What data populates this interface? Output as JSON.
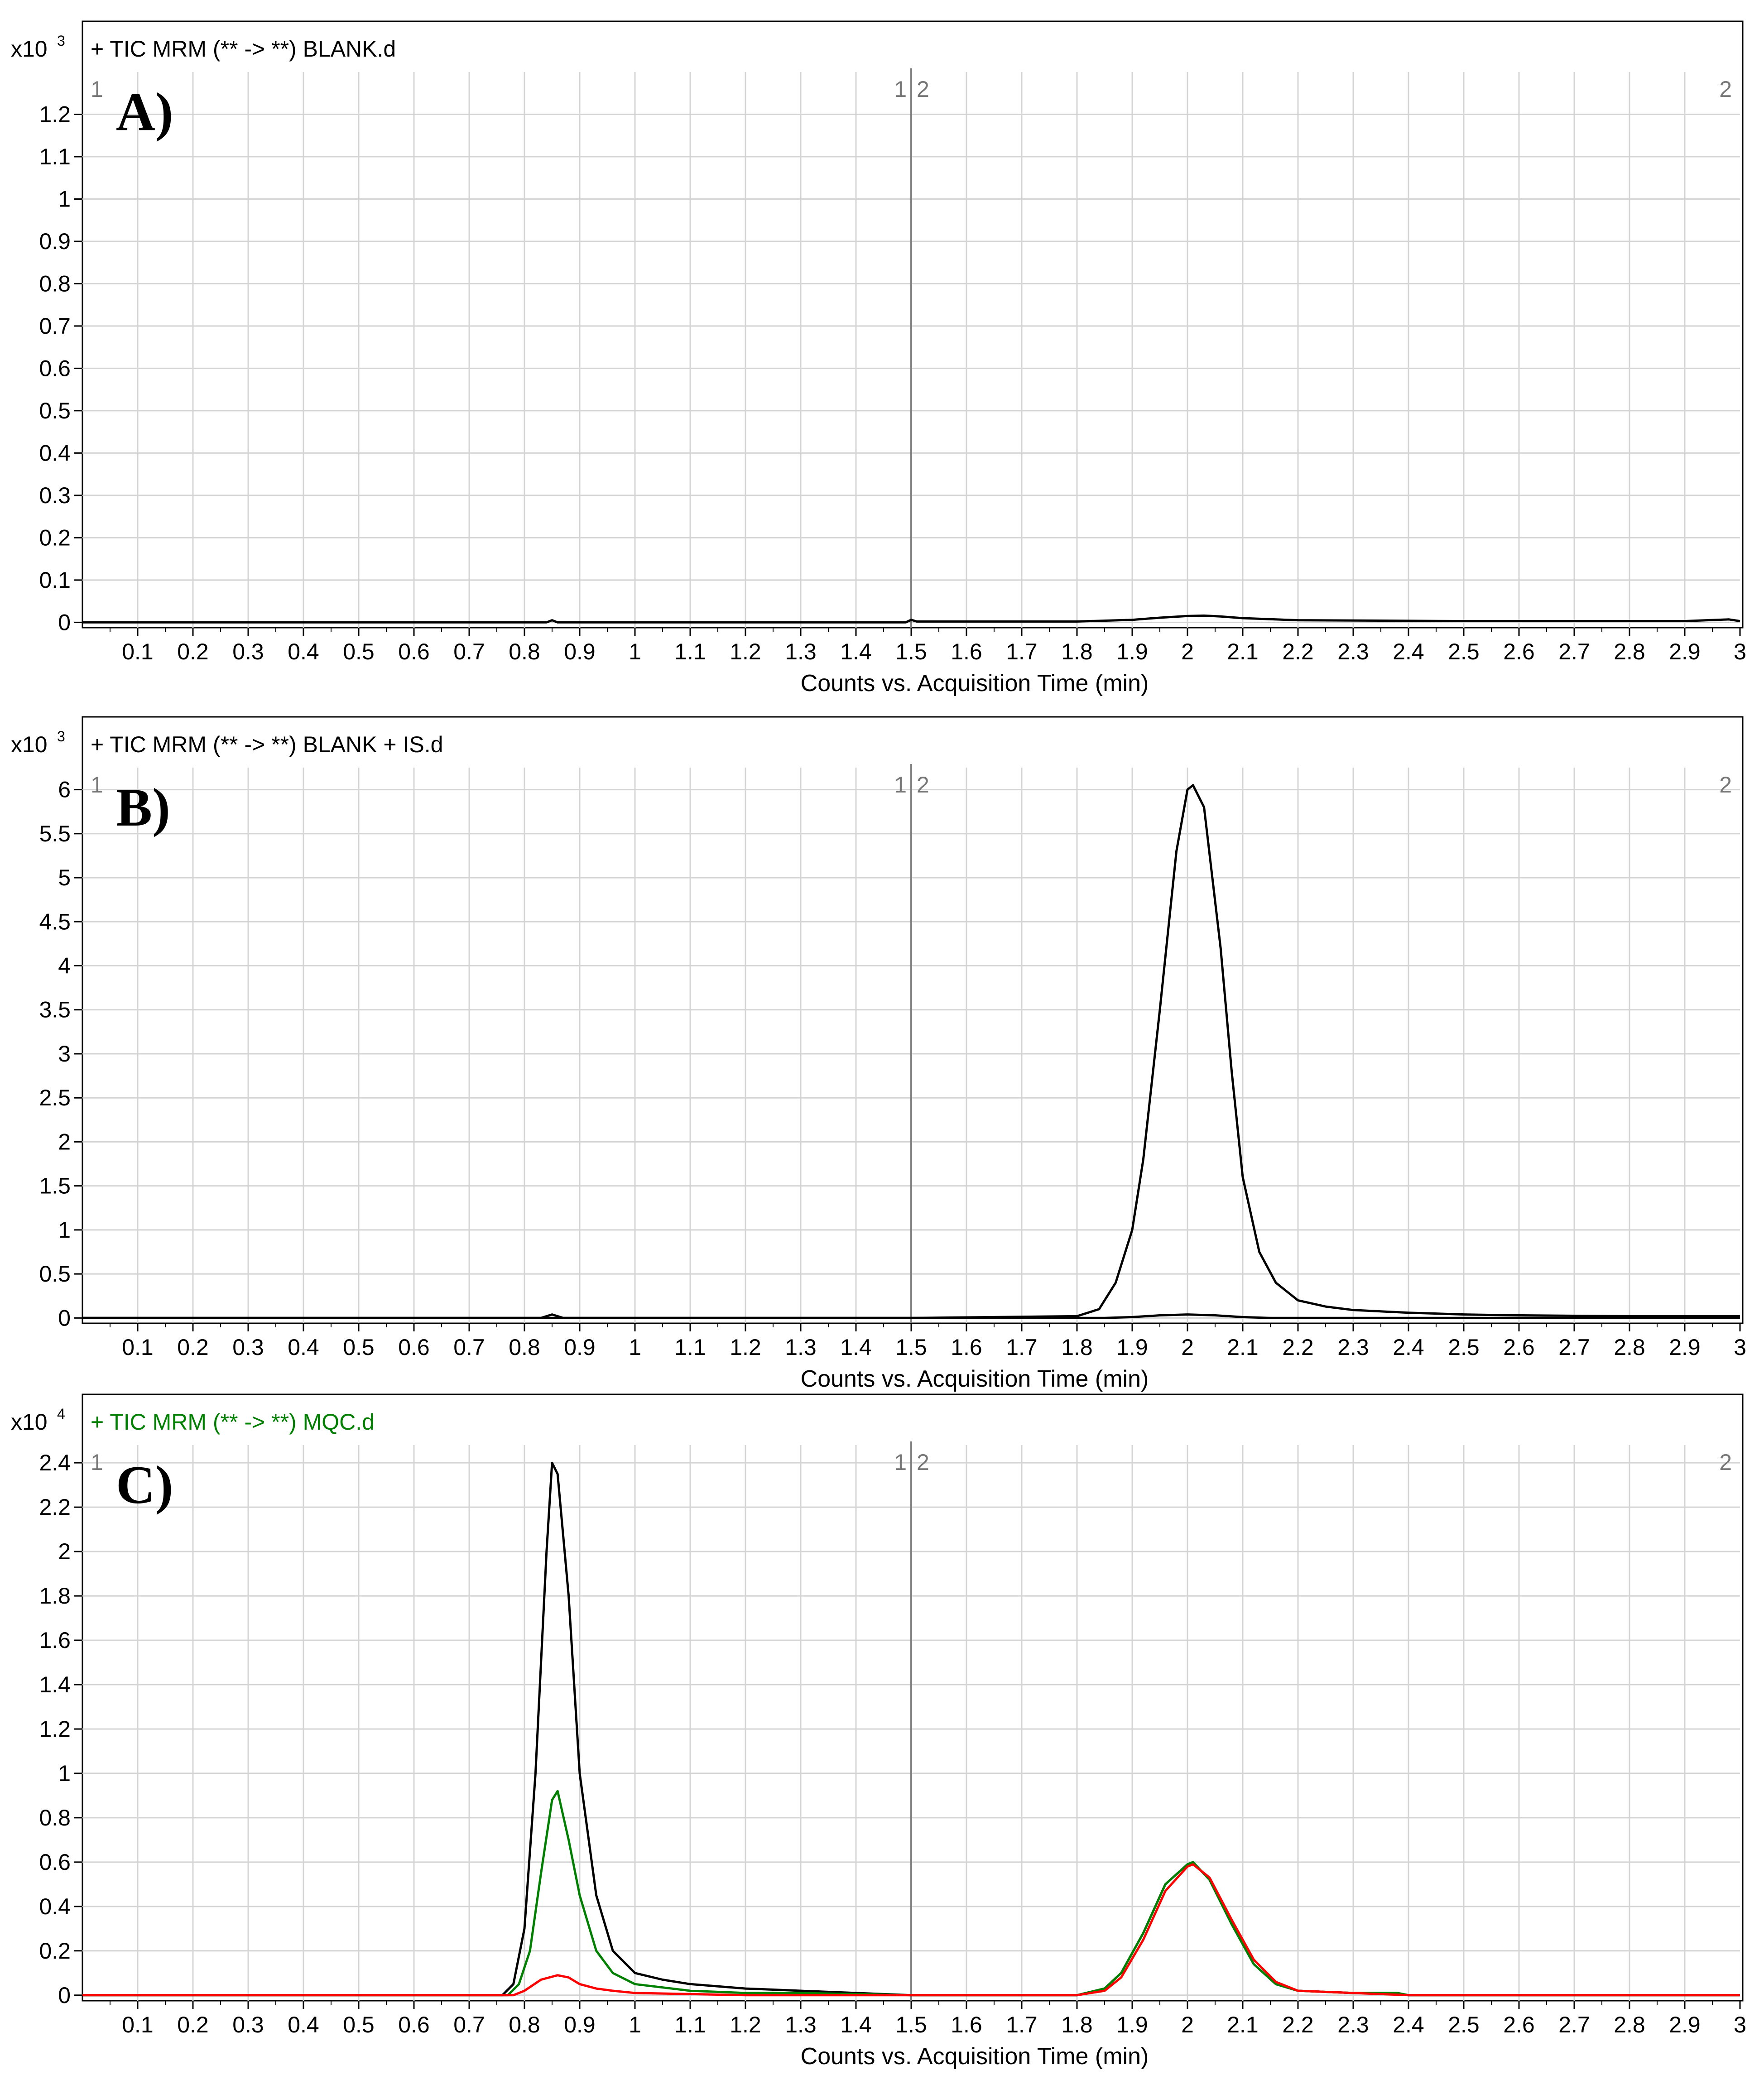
{
  "chart_data": [
    {
      "type": "line",
      "panel_label": "A)",
      "header": "+ TIC MRM (** -> **) BLANK.d",
      "header_color": "#000000",
      "scale_base": "x10",
      "scale_exponent": "3",
      "xlabel": "Counts vs. Acquisition Time (min)",
      "ylabel": "",
      "xlim": [
        0,
        3
      ],
      "ylim": [
        -0.0125,
        1.3
      ],
      "grid": true,
      "segment_divider_x": 1.5,
      "segment_labels": [
        "1",
        "1",
        "2",
        "2"
      ],
      "x_ticks": [
        "0.1",
        "0.2",
        "0.3",
        "0.4",
        "0.5",
        "0.6",
        "0.7",
        "0.8",
        "0.9",
        "1",
        "1.1",
        "1.2",
        "1.3",
        "1.4",
        "1.5",
        "1.6",
        "1.7",
        "1.8",
        "1.9",
        "2",
        "2.1",
        "2.2",
        "2.3",
        "2.4",
        "2.5",
        "2.6",
        "2.7",
        "2.8",
        "2.9",
        "3"
      ],
      "y_ticks": [
        "0",
        "0.1",
        "0.2",
        "0.3",
        "0.4",
        "0.5",
        "0.6",
        "0.7",
        "0.8",
        "0.9",
        "1",
        "1.1",
        "1.2"
      ],
      "series": [
        {
          "color": "#000000",
          "x": [
            0,
            0.5,
            0.84,
            0.85,
            0.86,
            1.0,
            1.49,
            1.5,
            1.51,
            1.8,
            1.9,
            1.95,
            2.0,
            2.03,
            2.06,
            2.1,
            2.2,
            2.5,
            2.9,
            2.98,
            3.0
          ],
          "y": [
            0,
            0,
            0,
            0.005,
            0,
            0,
            0,
            0.006,
            0.002,
            0.002,
            0.006,
            0.011,
            0.015,
            0.016,
            0.014,
            0.01,
            0.005,
            0.003,
            0.003,
            0.007,
            0.003
          ]
        }
      ]
    },
    {
      "type": "line",
      "panel_label": "B)",
      "header": "+ TIC MRM (** -> **) BLANK + IS.d",
      "header_color": "#000000",
      "scale_base": "x10",
      "scale_exponent": "3",
      "xlabel": "Counts vs. Acquisition Time (min)",
      "ylabel": "",
      "xlim": [
        0,
        3
      ],
      "ylim": [
        -0.06,
        6.25
      ],
      "grid": true,
      "segment_divider_x": 1.5,
      "segment_labels": [
        "1",
        "1",
        "2",
        "2"
      ],
      "x_ticks": [
        "0.1",
        "0.2",
        "0.3",
        "0.4",
        "0.5",
        "0.6",
        "0.7",
        "0.8",
        "0.9",
        "1",
        "1.1",
        "1.2",
        "1.3",
        "1.4",
        "1.5",
        "1.6",
        "1.7",
        "1.8",
        "1.9",
        "2",
        "2.1",
        "2.2",
        "2.3",
        "2.4",
        "2.5",
        "2.6",
        "2.7",
        "2.8",
        "2.9",
        "3"
      ],
      "y_ticks": [
        "0",
        "0.5",
        "1",
        "1.5",
        "2",
        "2.5",
        "3",
        "3.5",
        "4",
        "4.5",
        "5",
        "5.5",
        "6"
      ],
      "series": [
        {
          "color": "#000000",
          "x": [
            0,
            0.83,
            0.85,
            0.87,
            1.5,
            1.8,
            1.84,
            1.87,
            1.9,
            1.92,
            1.95,
            1.98,
            2.0,
            2.01,
            2.03,
            2.06,
            2.08,
            2.1,
            2.13,
            2.16,
            2.2,
            2.25,
            2.3,
            2.4,
            2.5,
            2.6,
            2.8,
            3.0
          ],
          "y": [
            0,
            0,
            0.04,
            0,
            0,
            0.02,
            0.1,
            0.4,
            1.0,
            1.8,
            3.5,
            5.3,
            6.0,
            6.05,
            5.8,
            4.2,
            2.8,
            1.6,
            0.75,
            0.4,
            0.2,
            0.13,
            0.09,
            0.06,
            0.04,
            0.03,
            0.02,
            0.02
          ]
        },
        {
          "color": "#000000",
          "x": [
            0,
            1.85,
            1.9,
            1.95,
            2.0,
            2.05,
            2.1,
            2.15,
            3.0
          ],
          "y": [
            0,
            0,
            0.01,
            0.03,
            0.04,
            0.03,
            0.01,
            0,
            0
          ]
        }
      ]
    },
    {
      "type": "line",
      "panel_label": "C)",
      "header": "+ TIC MRM (** -> **) MQC.d",
      "header_color": "#008000",
      "scale_base": "x10",
      "scale_exponent": "4",
      "xlabel": "Counts vs. Acquisition Time (min)",
      "ylabel": "",
      "xlim": [
        0,
        3
      ],
      "ylim": [
        -0.025,
        2.48
      ],
      "grid": true,
      "segment_divider_x": 1.5,
      "segment_labels": [
        "1",
        "1",
        "2",
        "2"
      ],
      "x_ticks": [
        "0.1",
        "0.2",
        "0.3",
        "0.4",
        "0.5",
        "0.6",
        "0.7",
        "0.8",
        "0.9",
        "1",
        "1.1",
        "1.2",
        "1.3",
        "1.4",
        "1.5",
        "1.6",
        "1.7",
        "1.8",
        "1.9",
        "2",
        "2.1",
        "2.2",
        "2.3",
        "2.4",
        "2.5",
        "2.6",
        "2.7",
        "2.8",
        "2.9",
        "3"
      ],
      "y_ticks": [
        "0",
        "0.2",
        "0.4",
        "0.6",
        "0.8",
        "1",
        "1.2",
        "1.4",
        "1.6",
        "1.8",
        "2",
        "2.2",
        "2.4"
      ],
      "series": [
        {
          "color": "#000000",
          "x": [
            0,
            0.76,
            0.78,
            0.8,
            0.82,
            0.84,
            0.85,
            0.86,
            0.88,
            0.9,
            0.93,
            0.96,
            1.0,
            1.05,
            1.1,
            1.2,
            1.3,
            1.4,
            1.5,
            1.6,
            1.8,
            1.85,
            1.88,
            1.92,
            1.96,
            2.0,
            2.01,
            2.04,
            2.08,
            2.12,
            2.16,
            2.2,
            2.3,
            2.38,
            2.4,
            3.0
          ],
          "y": [
            0,
            0,
            0.05,
            0.3,
            1.0,
            2.0,
            2.4,
            2.35,
            1.8,
            1.0,
            0.45,
            0.2,
            0.1,
            0.07,
            0.05,
            0.03,
            0.02,
            0.01,
            0.0,
            0,
            0,
            0.03,
            0.1,
            0.28,
            0.5,
            0.59,
            0.6,
            0.52,
            0.32,
            0.14,
            0.05,
            0.02,
            0.01,
            0.01,
            0,
            0
          ]
        },
        {
          "color": "#008000",
          "x": [
            0,
            0.77,
            0.79,
            0.81,
            0.83,
            0.85,
            0.86,
            0.88,
            0.9,
            0.93,
            0.96,
            1.0,
            1.1,
            1.2,
            1.3,
            1.5,
            1.8,
            1.85,
            1.88,
            1.92,
            1.96,
            2.0,
            2.01,
            2.04,
            2.08,
            2.12,
            2.16,
            2.2,
            2.3,
            2.38,
            2.4,
            3.0
          ],
          "y": [
            0,
            0,
            0.05,
            0.2,
            0.55,
            0.88,
            0.92,
            0.7,
            0.45,
            0.2,
            0.1,
            0.05,
            0.02,
            0.01,
            0.01,
            0,
            0,
            0.03,
            0.1,
            0.28,
            0.5,
            0.59,
            0.6,
            0.52,
            0.32,
            0.14,
            0.05,
            0.02,
            0.01,
            0.01,
            0,
            0
          ]
        },
        {
          "color": "#ff0000",
          "x": [
            0,
            0.78,
            0.8,
            0.83,
            0.86,
            0.88,
            0.9,
            0.93,
            0.96,
            1.0,
            1.1,
            1.2,
            1.5,
            1.8,
            1.85,
            1.88,
            1.92,
            1.96,
            2.0,
            2.01,
            2.04,
            2.08,
            2.12,
            2.16,
            2.2,
            2.3,
            2.4,
            3.0
          ],
          "y": [
            0,
            0,
            0.02,
            0.07,
            0.09,
            0.08,
            0.05,
            0.03,
            0.02,
            0.01,
            0.005,
            0,
            0,
            0,
            0.02,
            0.08,
            0.25,
            0.47,
            0.58,
            0.59,
            0.53,
            0.34,
            0.16,
            0.06,
            0.02,
            0.01,
            0,
            0
          ]
        }
      ]
    }
  ]
}
